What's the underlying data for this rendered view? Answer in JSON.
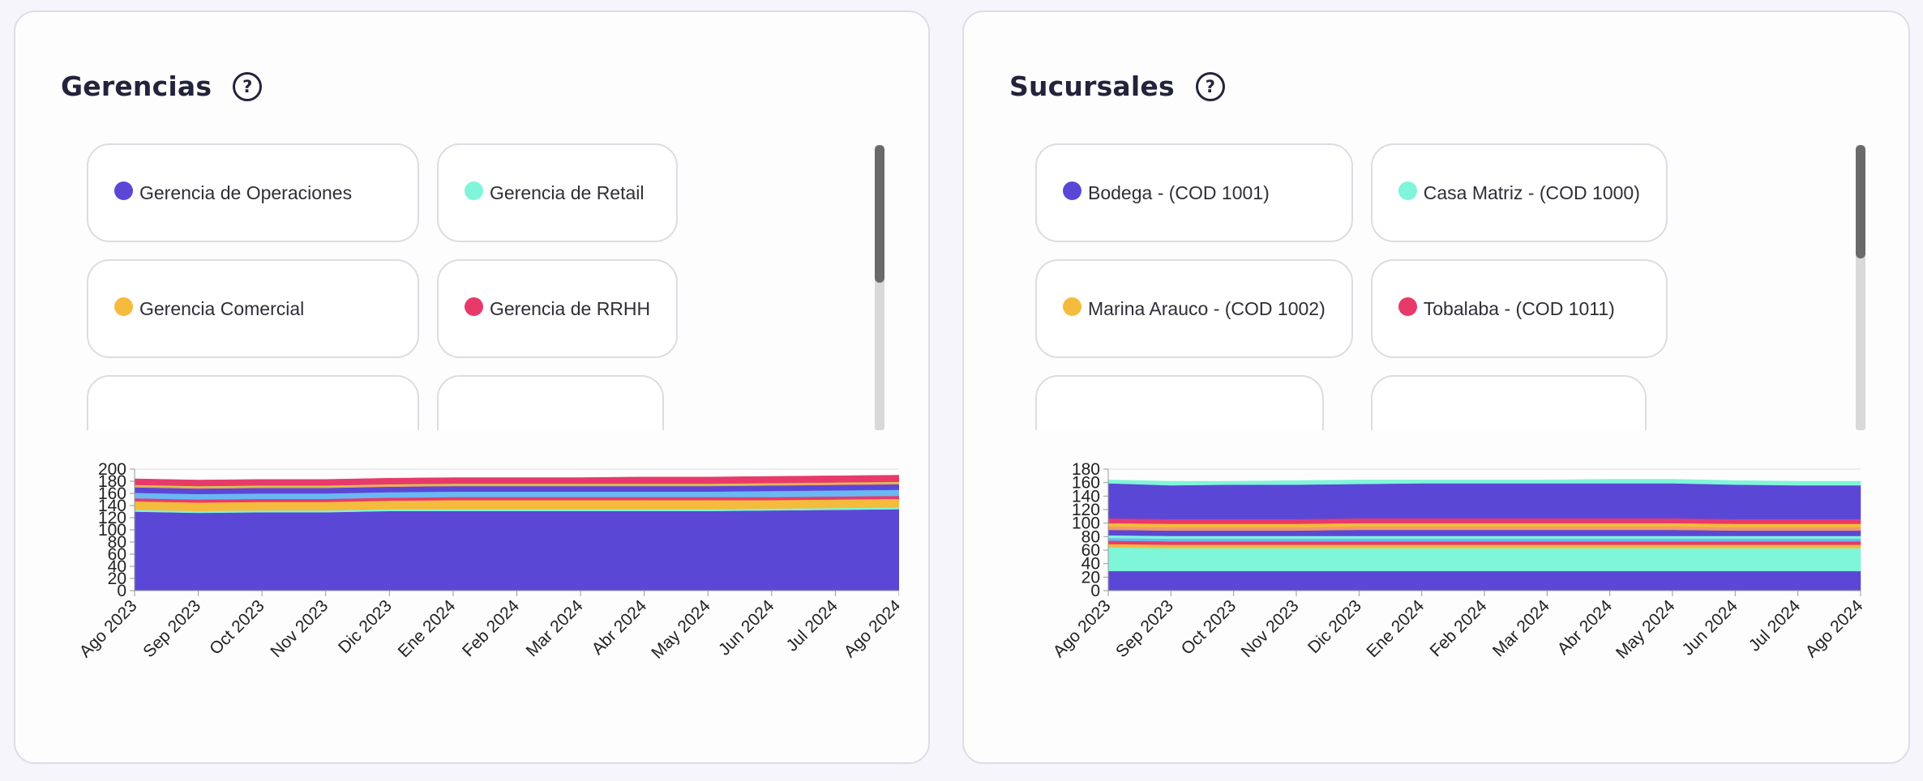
{
  "left_panel": {
    "title": "Gerencias",
    "help_icon": "question-circle-icon",
    "legend": [
      {
        "label": "Gerencia de Operaciones",
        "color": "#5b47d6"
      },
      {
        "label": "Gerencia de Retail",
        "color": "#7ff5d9"
      },
      {
        "label": "Gerencia Comercial",
        "color": "#f5bb3c"
      },
      {
        "label": "Gerencia de RRHH",
        "color": "#e83a6a"
      }
    ],
    "chart_data": {
      "type": "area",
      "stacked": true,
      "categories": [
        "Ago 2023",
        "Sep 2023",
        "Oct 2023",
        "Nov 2023",
        "Dic 2023",
        "Ene 2024",
        "Feb 2024",
        "Mar 2024",
        "Abr 2024",
        "May 2024",
        "Jun 2024",
        "Jul 2024",
        "Ago 2024"
      ],
      "ylim": [
        0,
        200
      ],
      "yticks": [
        0,
        20,
        40,
        60,
        80,
        100,
        120,
        140,
        160,
        180,
        200
      ],
      "grid": false,
      "series": [
        {
          "color": "#5b47d6",
          "values": [
            130,
            128,
            129,
            129,
            131,
            131,
            131,
            131,
            131,
            131,
            132,
            133,
            134
          ]
        },
        {
          "color": "#7ff5d9",
          "values": [
            3,
            3,
            3,
            3,
            3,
            3,
            3,
            3,
            3,
            3,
            3,
            3,
            3
          ]
        },
        {
          "color": "#f5bb3c",
          "values": [
            14,
            14,
            14,
            14,
            14,
            15,
            15,
            15,
            15,
            15,
            14,
            14,
            14
          ]
        },
        {
          "color": "#e83a6a",
          "values": [
            5,
            5,
            5,
            5,
            5,
            5,
            5,
            5,
            5,
            5,
            5,
            5,
            5
          ]
        },
        {
          "color": "#6ab8f2",
          "values": [
            9,
            9,
            9,
            9,
            9,
            9,
            9,
            9,
            9,
            9,
            10,
            10,
            10
          ]
        },
        {
          "color": "#5b47d6",
          "values": [
            9,
            9,
            9,
            9,
            9,
            9,
            9,
            9,
            9,
            9,
            9,
            9,
            9
          ]
        },
        {
          "color": "#f2996b",
          "values": [
            2,
            2,
            2,
            2,
            2,
            2,
            2,
            2,
            2,
            2,
            2,
            2,
            2
          ]
        },
        {
          "color": "#d4d04a",
          "values": [
            2,
            2,
            2,
            2,
            2,
            2,
            2,
            2,
            2,
            2,
            2,
            2,
            2
          ]
        },
        {
          "color": "#e83a6a",
          "values": [
            10,
            10,
            10,
            10,
            10,
            10,
            10,
            10,
            11,
            11,
            11,
            11,
            11
          ]
        }
      ]
    }
  },
  "right_panel": {
    "title": "Sucursales",
    "help_icon": "question-circle-icon",
    "legend": [
      {
        "label": "Bodega - (COD 1001)",
        "color": "#5b47d6"
      },
      {
        "label": "Casa Matriz - (COD 1000)",
        "color": "#7ff5d9"
      },
      {
        "label": "Marina Arauco - (COD 1002)",
        "color": "#f5bb3c"
      },
      {
        "label": "Tobalaba - (COD 1011)",
        "color": "#e83a6a"
      }
    ],
    "chart_data": {
      "type": "area",
      "stacked": true,
      "categories": [
        "Ago 2023",
        "Sep 2023",
        "Oct 2023",
        "Nov 2023",
        "Dic 2023",
        "Ene 2024",
        "Feb 2024",
        "Mar 2024",
        "Abr 2024",
        "May 2024",
        "Jun 2024",
        "Jul 2024",
        "Ago 2024"
      ],
      "ylim": [
        0,
        180
      ],
      "yticks": [
        0,
        20,
        40,
        60,
        80,
        100,
        120,
        140,
        160,
        180
      ],
      "grid": false,
      "series": [
        {
          "color": "#5b47d6",
          "values": [
            29,
            29,
            29,
            29,
            29,
            29,
            29,
            29,
            29,
            29,
            29,
            29,
            29
          ]
        },
        {
          "color": "#7ff5d9",
          "values": [
            35,
            34,
            34,
            34,
            34,
            34,
            34,
            34,
            34,
            34,
            34,
            34,
            34
          ]
        },
        {
          "color": "#f5bb3c",
          "values": [
            5,
            5,
            5,
            5,
            5,
            5,
            5,
            5,
            5,
            5,
            5,
            5,
            5
          ]
        },
        {
          "color": "#e83a6a",
          "values": [
            5,
            5,
            5,
            5,
            5,
            5,
            5,
            5,
            5,
            5,
            5,
            5,
            5
          ]
        },
        {
          "color": "#6ab8f2",
          "values": [
            4,
            4,
            4,
            4,
            4,
            4,
            4,
            4,
            4,
            4,
            4,
            4,
            4
          ]
        },
        {
          "color": "#7ff5d9",
          "values": [
            4,
            4,
            4,
            4,
            4,
            4,
            4,
            4,
            4,
            4,
            4,
            4,
            4
          ]
        },
        {
          "color": "#5b47d6",
          "values": [
            8,
            8,
            8,
            8,
            9,
            9,
            9,
            9,
            9,
            9,
            8,
            8,
            8
          ]
        },
        {
          "color": "#f2996b",
          "values": [
            5,
            5,
            5,
            5,
            5,
            5,
            5,
            5,
            5,
            5,
            5,
            5,
            5
          ]
        },
        {
          "color": "#f5bb3c",
          "values": [
            5,
            5,
            5,
            5,
            5,
            5,
            5,
            5,
            5,
            5,
            5,
            5,
            5
          ]
        },
        {
          "color": "#e83a6a",
          "values": [
            7,
            7,
            7,
            7,
            7,
            7,
            7,
            7,
            7,
            7,
            7,
            7,
            7
          ]
        },
        {
          "color": "#5b47d6",
          "values": [
            5,
            5,
            5,
            5,
            5,
            5,
            5,
            5,
            5,
            5,
            5,
            5,
            5
          ]
        },
        {
          "color": "#5b47d6",
          "values": [
            47,
            45,
            46,
            46,
            46,
            47,
            47,
            47,
            47,
            47,
            46,
            45,
            45
          ]
        },
        {
          "color": "#7ff5d9",
          "values": [
            5,
            6,
            5,
            6,
            6,
            5,
            5,
            5,
            6,
            6,
            6,
            6,
            6
          ]
        }
      ]
    }
  }
}
